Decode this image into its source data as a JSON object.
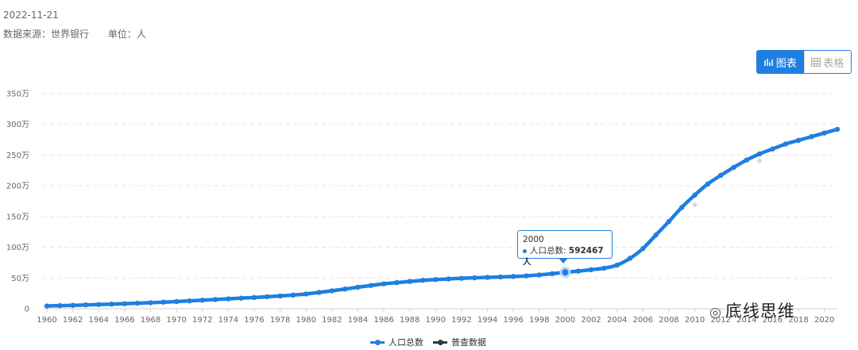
{
  "header": {
    "date": "2022-11-21",
    "source": "数据来源：世界银行",
    "unit": "单位：人"
  },
  "toggle": {
    "chart_label": "图表",
    "table_label": "表格",
    "chart_icon": "chart-icon",
    "table_icon": "table-icon"
  },
  "tooltip": {
    "year": "2000",
    "series": "人口总数:",
    "value": "592467人"
  },
  "watermark": {
    "text": "底线思维",
    "icon": "wechat-icon"
  },
  "colors": {
    "accent": "#1e7fe0",
    "census": "#2b3a4a",
    "grid": "#e6e6e6"
  },
  "chart_data": {
    "type": "line",
    "title": "",
    "xlabel": "",
    "ylabel": "",
    "y_tick_labels": [
      "0",
      "50万",
      "100万",
      "150万",
      "200万",
      "250万",
      "300万",
      "350万"
    ],
    "ylim": [
      0,
      3500000
    ],
    "x_tick_labels": [
      "1960",
      "1962",
      "1964",
      "1966",
      "1968",
      "1970",
      "1972",
      "1974",
      "1976",
      "1978",
      "1980",
      "1982",
      "1984",
      "1986",
      "1988",
      "1990",
      "1992",
      "1994",
      "1996",
      "1998",
      "2000",
      "2002",
      "2004",
      "2006",
      "2008",
      "2010",
      "2012",
      "2014",
      "2016",
      "2018",
      "2020"
    ],
    "legend_position": "bottom-center",
    "grid": true,
    "series": [
      {
        "name": "人口总数",
        "color": "#1e7fe0",
        "x": [
          1960,
          1961,
          1962,
          1963,
          1964,
          1965,
          1966,
          1967,
          1968,
          1969,
          1970,
          1971,
          1972,
          1973,
          1974,
          1975,
          1976,
          1977,
          1978,
          1979,
          1980,
          1981,
          1982,
          1983,
          1984,
          1985,
          1986,
          1987,
          1988,
          1989,
          1990,
          1991,
          1992,
          1993,
          1994,
          1995,
          1996,
          1997,
          1998,
          1999,
          2000,
          2001,
          2002,
          2003,
          2004,
          2005,
          2006,
          2007,
          2008,
          2009,
          2010,
          2011,
          2012,
          2013,
          2014,
          2015,
          2016,
          2017,
          2018,
          2019,
          2020,
          2021
        ],
        "values": [
          45000,
          50000,
          55000,
          62000,
          68000,
          75000,
          82000,
          90000,
          98000,
          107000,
          117000,
          128000,
          139000,
          150000,
          161000,
          172000,
          183000,
          195000,
          208000,
          222000,
          240000,
          265000,
          292000,
          320000,
          350000,
          378000,
          405000,
          425000,
          444000,
          462000,
          475000,
          485000,
          495000,
          503000,
          510000,
          517000,
          525000,
          535000,
          550000,
          570000,
          592467,
          612000,
          635000,
          660000,
          710000,
          820000,
          980000,
          1200000,
          1420000,
          1650000,
          1850000,
          2030000,
          2170000,
          2300000,
          2420000,
          2520000,
          2600000,
          2680000,
          2740000,
          2800000,
          2860000,
          2920000
        ]
      },
      {
        "name": "普查数据",
        "color": "#2b3a4a",
        "x": [
          2010,
          2015
        ],
        "values": [
          1690000,
          2410000
        ]
      }
    ]
  }
}
